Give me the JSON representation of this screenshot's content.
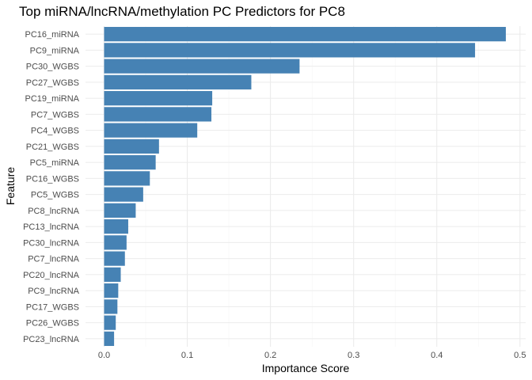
{
  "chart_data": {
    "type": "bar",
    "orientation": "horizontal",
    "title": "Top miRNA/lncRNA/methylation PC Predictors for PC8",
    "xlabel": "Importance Score",
    "ylabel": "Feature",
    "xlim": [
      0,
      0.5
    ],
    "x_ticks": [
      "0.0",
      "0.1",
      "0.2",
      "0.3",
      "0.4",
      "0.5"
    ],
    "grid": true,
    "legend": "none",
    "bar_color": "#4682B4",
    "categories": [
      "PC16_miRNA",
      "PC9_miRNA",
      "PC30_WGBS",
      "PC27_WGBS",
      "PC19_miRNA",
      "PC7_WGBS",
      "PC4_WGBS",
      "PC21_WGBS",
      "PC5_miRNA",
      "PC16_WGBS",
      "PC5_WGBS",
      "PC8_lncRNA",
      "PC13_lncRNA",
      "PC30_lncRNA",
      "PC7_lncRNA",
      "PC20_lncRNA",
      "PC9_lncRNA",
      "PC17_WGBS",
      "PC26_WGBS",
      "PC23_lncRNA"
    ],
    "values": [
      0.483,
      0.446,
      0.235,
      0.177,
      0.13,
      0.129,
      0.112,
      0.066,
      0.062,
      0.055,
      0.047,
      0.038,
      0.029,
      0.027,
      0.025,
      0.02,
      0.017,
      0.016,
      0.014,
      0.012
    ]
  }
}
